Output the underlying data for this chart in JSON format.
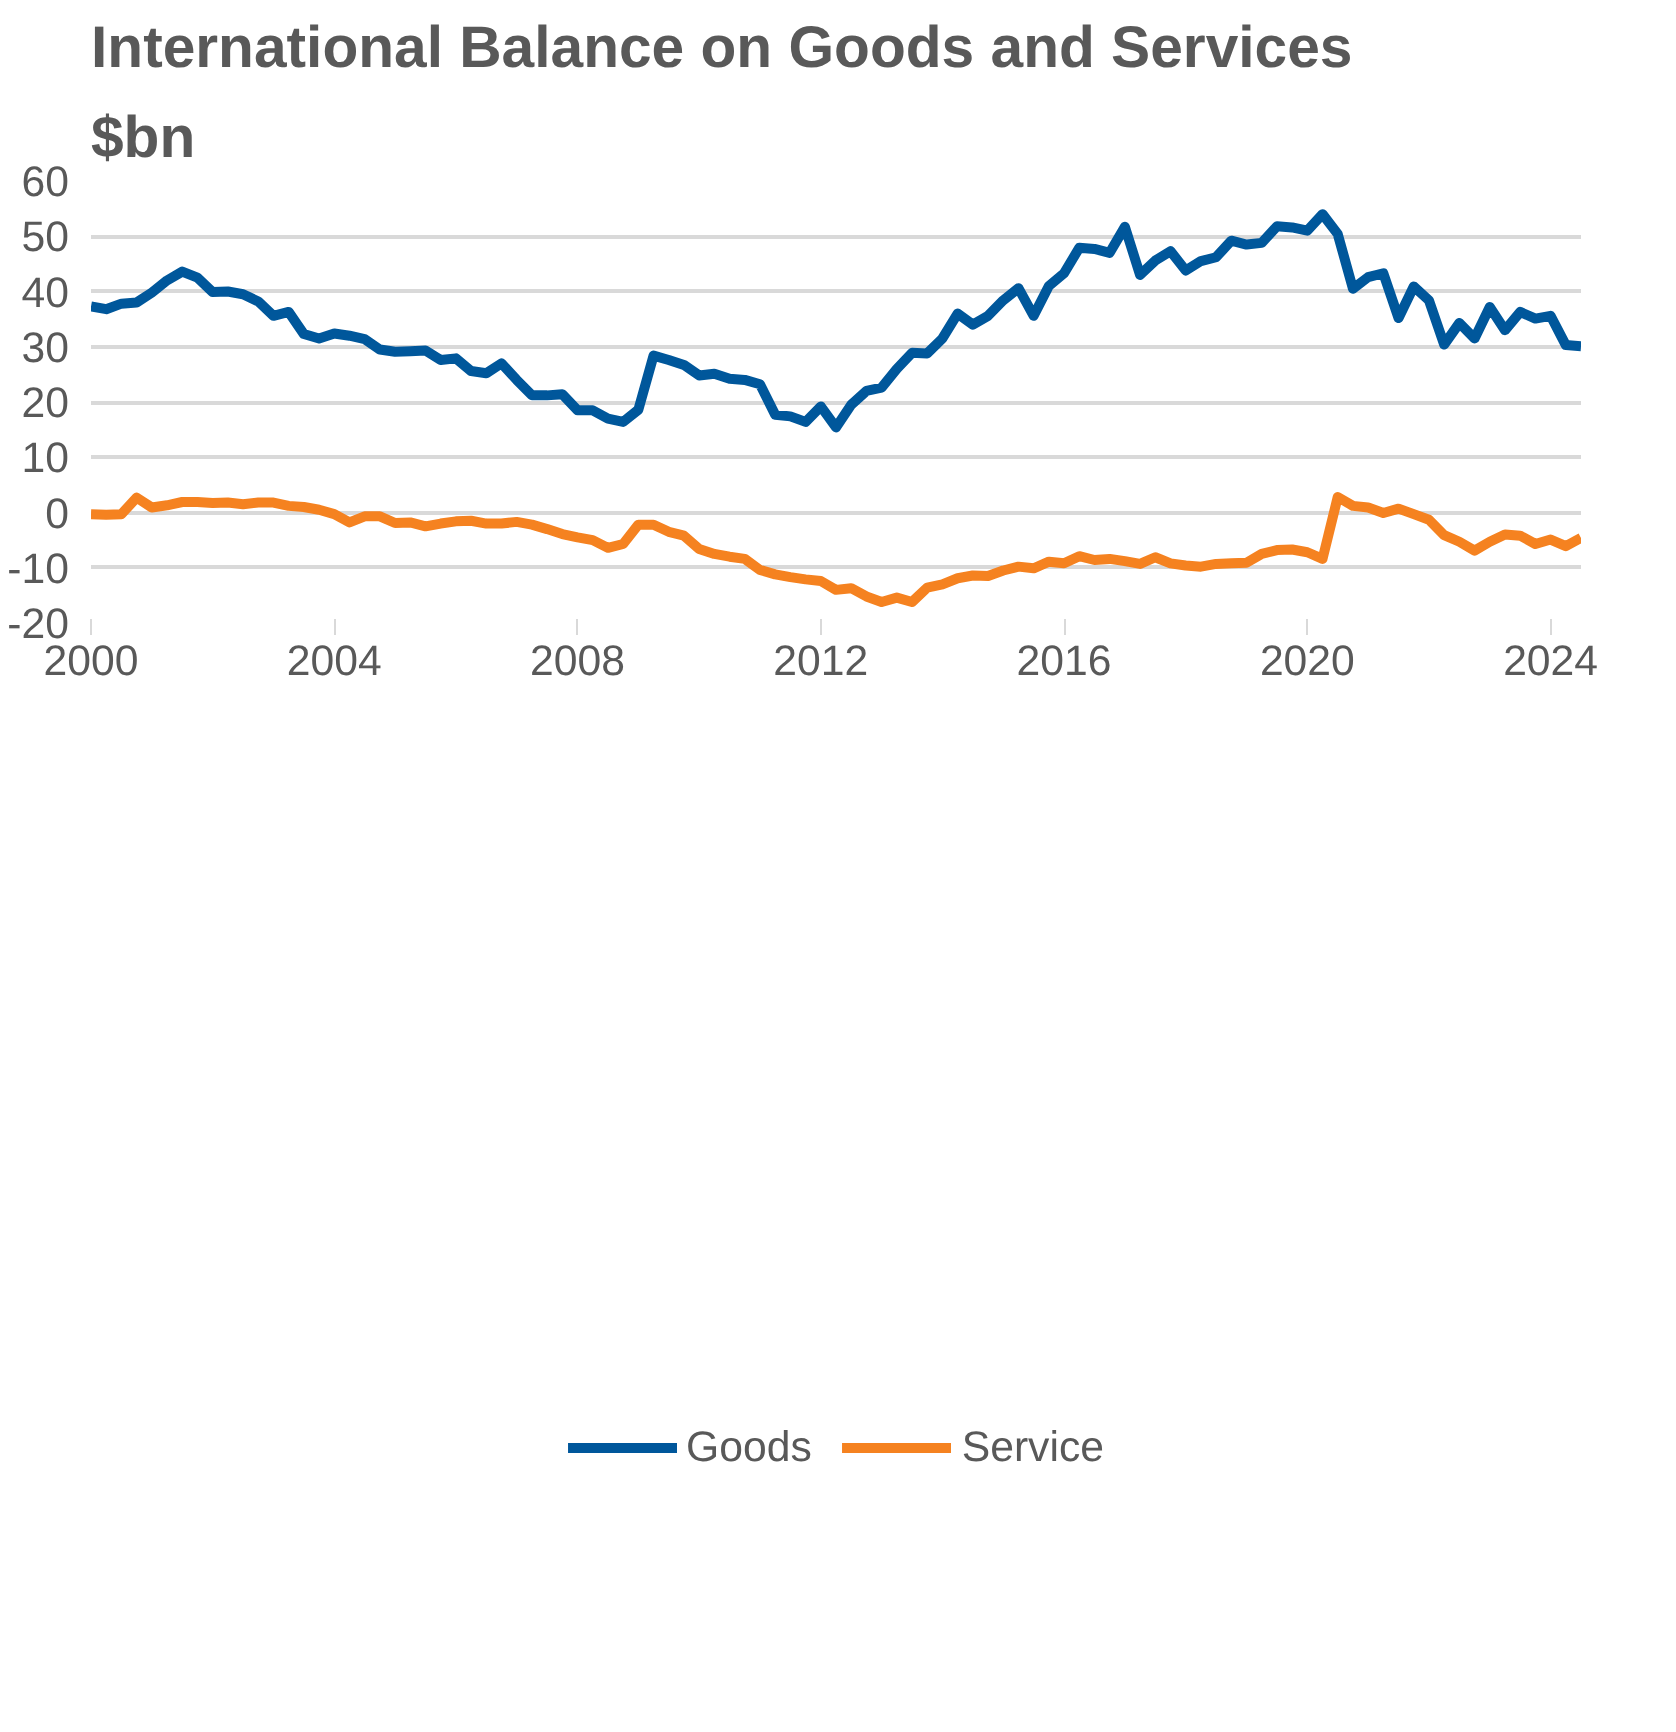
{
  "chart_data": {
    "type": "line",
    "title": "International Balance on Goods and Services",
    "subtitle": "$bn",
    "x": [
      2000,
      2000.25,
      2000.5,
      2000.75,
      2001,
      2001.25,
      2001.5,
      2001.75,
      2002,
      2002.25,
      2002.5,
      2002.75,
      2003,
      2003.25,
      2003.5,
      2003.75,
      2004,
      2004.25,
      2004.5,
      2004.75,
      2005,
      2005.25,
      2005.5,
      2005.75,
      2006,
      2006.25,
      2006.5,
      2006.75,
      2007,
      2007.25,
      2007.5,
      2007.75,
      2008,
      2008.25,
      2008.5,
      2008.75,
      2009,
      2009.25,
      2009.5,
      2009.75,
      2010,
      2010.25,
      2010.5,
      2010.75,
      2011,
      2011.25,
      2011.5,
      2011.75,
      2012,
      2012.25,
      2012.5,
      2012.75,
      2013,
      2013.25,
      2013.5,
      2013.75,
      2014,
      2014.25,
      2014.5,
      2014.75,
      2015,
      2015.25,
      2015.5,
      2015.75,
      2016,
      2016.25,
      2016.5,
      2016.75,
      2017,
      2017.25,
      2017.5,
      2017.75,
      2018,
      2018.25,
      2018.5,
      2018.75,
      2019,
      2019.25,
      2019.5,
      2019.75,
      2020,
      2020.25,
      2020.5,
      2020.75,
      2021,
      2021.25,
      2021.5,
      2021.75,
      2022,
      2022.25,
      2022.5,
      2022.75,
      2023,
      2023.25,
      2023.5,
      2023.75,
      2024,
      2024.25,
      2024.5
    ],
    "series": [
      {
        "name": "Goods",
        "color": "#00579b",
        "values": [
          37.3,
          36.8,
          37.8,
          38.0,
          39.8,
          42.0,
          43.6,
          42.5,
          39.9,
          40.0,
          39.5,
          38.2,
          35.6,
          36.3,
          32.3,
          31.5,
          32.4,
          32.0,
          31.4,
          29.5,
          29.1,
          29.2,
          29.3,
          27.6,
          27.9,
          25.6,
          25.2,
          27.0,
          24.0,
          21.2,
          21.2,
          21.4,
          18.5,
          18.5,
          17.0,
          16.4,
          18.6,
          28.4,
          27.6,
          26.7,
          24.8,
          25.1,
          24.2,
          24.0,
          23.2,
          17.7,
          17.4,
          16.4,
          19.2,
          15.4,
          19.5,
          22.0,
          22.6,
          26.0,
          28.9,
          28.8,
          31.5,
          36.0,
          34.0,
          35.6,
          38.4,
          40.6,
          35.6,
          41.0,
          43.3,
          47.9,
          47.7,
          47.0,
          51.7,
          43.0,
          45.6,
          47.3,
          43.8,
          45.5,
          46.2,
          49.2,
          48.5,
          48.8,
          51.8,
          51.6,
          51.0,
          54.0,
          50.4,
          40.5,
          42.6,
          43.3,
          35.2,
          40.9,
          38.4,
          30.4,
          34.3,
          31.5,
          37.2,
          33.0,
          36.3,
          35.1,
          35.6,
          30.3,
          30.1
        ]
      },
      {
        "name": "Service",
        "color": "#f58220",
        "values": [
          -0.3,
          -0.4,
          -0.3,
          2.7,
          0.9,
          1.3,
          1.9,
          1.9,
          1.7,
          1.8,
          1.5,
          1.8,
          1.8,
          1.2,
          1.0,
          0.5,
          -0.3,
          -1.8,
          -0.7,
          -0.7,
          -1.9,
          -1.8,
          -2.5,
          -2.0,
          -1.6,
          -1.5,
          -2.0,
          -2.0,
          -1.7,
          -2.2,
          -3.0,
          -3.9,
          -4.5,
          -5.0,
          -6.4,
          -5.7,
          -2.2,
          -2.2,
          -3.5,
          -4.2,
          -6.6,
          -7.5,
          -8.0,
          -8.4,
          -10.4,
          -11.2,
          -11.7,
          -12.1,
          -12.4,
          -14.0,
          -13.7,
          -15.2,
          -16.2,
          -15.4,
          -16.2,
          -13.6,
          -13.0,
          -11.9,
          -11.4,
          -11.5,
          -10.5,
          -9.8,
          -10.1,
          -8.9,
          -9.2,
          -7.9,
          -8.6,
          -8.4,
          -8.8,
          -9.3,
          -8.1,
          -9.2,
          -9.6,
          -9.8,
          -9.3,
          -9.2,
          -9.1,
          -7.5,
          -6.8,
          -6.7,
          -7.2,
          -8.4,
          2.8,
          1.2,
          0.9,
          -0.1,
          0.7,
          -0.3,
          -1.3,
          -4.1,
          -5.3,
          -6.9,
          -5.3,
          -4.0,
          -4.2,
          -5.7,
          -4.9,
          -6.1,
          -4.6
        ]
      }
    ],
    "xlim": [
      2000,
      2024.5
    ],
    "xticks": [
      2000,
      2004,
      2008,
      2012,
      2016,
      2020,
      2024
    ],
    "ylim": [
      -20,
      60
    ],
    "yticks": [
      -20,
      -10,
      0,
      10,
      20,
      30,
      40,
      50,
      60
    ],
    "grid": "y",
    "legend": "bottom",
    "line_style": "solid",
    "marker": "none"
  }
}
